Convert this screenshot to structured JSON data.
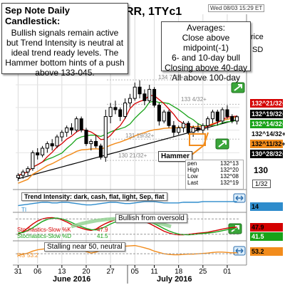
{
  "header": {
    "symbol_text": "RR, 1TYc1",
    "timestamp": "Wed 08/03 15:29 ET"
  },
  "notes": {
    "title": "Sep Note Daily Candlestick:",
    "body": "Bullish signals remain active but  Trend Intensity is neutral at ideal trend ready levels. The Hammer bottom hints of a push above 133-045."
  },
  "averages": {
    "title": "Averages:",
    "lines": [
      "Close above midpoint(-1)",
      "6- and 10-day bull",
      "Closing above 40-day",
      "All above 100-day"
    ]
  },
  "edge_fragments": [
    "rice",
    "SD"
  ],
  "hammer_label": "Hammer",
  "data_window": {
    "rows": [
      {
        "label": "pen",
        "value": "132^13"
      },
      {
        "label": "High",
        "value": "132^20"
      },
      {
        "label": "Low",
        "value": "132^08"
      },
      {
        "label": "Last",
        "value": "132^19"
      }
    ]
  },
  "level_labels": [
    "134 7/32+",
    "133 4/32+",
    "131 19/32+",
    "130 21/32+"
  ],
  "price_tags": [
    {
      "text": "132^21/32+",
      "bg": "#d40000",
      "fg": "#ffffff"
    },
    {
      "text": "132^19/32+",
      "bg": "#000000",
      "fg": "#ffffff"
    },
    {
      "text": "132^14/32+",
      "bg": "#19a319",
      "fg": "#ffffff"
    },
    {
      "text": "132^14/32+",
      "bg": "#ffffff",
      "fg": "#000000"
    },
    {
      "text": "132^11/32+",
      "bg": "#f28c1c",
      "fg": "#000000"
    },
    {
      "text": "130^28/32+",
      "bg": "#000000",
      "fg": "#ffffff"
    }
  ],
  "axis_labels": {
    "main_y": "130",
    "sub_y": "1/32"
  },
  "panels": {
    "trend": {
      "label": "Trend Intensity: dark, cash, flat, light, Sep, flat",
      "value": "14",
      "tag_bg": "#2e8ccc",
      "small": "TI"
    },
    "stochastics": {
      "label": "Bullish from oversold",
      "k_label": "Stochastics-Slow %K",
      "k_value": "47.9",
      "d_label": "Stochastics-Slow %D",
      "d_value": "41.5",
      "k_tag": "47.9",
      "k_tag_bg": "#d40000",
      "d_tag": "41.5",
      "d_tag_bg": "#19a319"
    },
    "rsi": {
      "label": "Stalling near 50, neutral",
      "small": "RS",
      "value_text": "53.2",
      "tag": "53.2",
      "tag_bg": "#f28c1c"
    }
  },
  "x_axis": {
    "ticks": [
      "31",
      "06",
      "13",
      "20",
      "27",
      "05",
      "11",
      "18",
      "25",
      "01"
    ],
    "months": [
      "June 2016",
      "July 2016"
    ]
  },
  "chart_data": [
    {
      "type": "candlestick",
      "title": "Sep Note Daily Candlestick",
      "x": [
        "05-31",
        "06-01",
        "06-02",
        "06-03",
        "06-06",
        "06-07",
        "06-08",
        "06-09",
        "06-10",
        "06-13",
        "06-14",
        "06-15",
        "06-16",
        "06-17",
        "06-20",
        "06-21",
        "06-22",
        "06-23",
        "06-24",
        "06-27",
        "06-28",
        "06-29",
        "06-30",
        "07-01",
        "07-05",
        "07-06",
        "07-07",
        "07-08",
        "07-11",
        "07-12",
        "07-13",
        "07-14",
        "07-15",
        "07-18",
        "07-19",
        "07-20",
        "07-21",
        "07-22",
        "07-25",
        "07-26",
        "07-27",
        "07-28",
        "07-29",
        "08-01",
        "08-02",
        "08-03"
      ],
      "candles": [
        [
          129.9,
          130.1,
          129.75,
          130.0
        ],
        [
          130.0,
          130.25,
          129.85,
          130.15
        ],
        [
          130.15,
          130.4,
          130.0,
          130.3
        ],
        [
          130.3,
          131.1,
          130.2,
          131.0
        ],
        [
          131.0,
          131.2,
          130.7,
          130.9
        ],
        [
          130.9,
          131.3,
          130.8,
          131.2
        ],
        [
          131.2,
          131.5,
          131.0,
          131.4
        ],
        [
          131.4,
          131.6,
          131.1,
          131.3
        ],
        [
          131.3,
          131.8,
          131.2,
          131.7
        ],
        [
          131.7,
          132.0,
          131.5,
          131.9
        ],
        [
          131.9,
          132.2,
          131.7,
          132.1
        ],
        [
          132.1,
          132.3,
          131.8,
          132.0
        ],
        [
          132.0,
          132.6,
          131.9,
          132.5
        ],
        [
          132.5,
          132.6,
          131.9,
          132.0
        ],
        [
          132.0,
          132.1,
          131.3,
          131.4
        ],
        [
          131.4,
          131.6,
          131.1,
          131.5
        ],
        [
          131.5,
          131.8,
          131.2,
          131.3
        ],
        [
          131.3,
          131.4,
          130.7,
          130.8
        ],
        [
          130.8,
          132.9,
          130.6,
          132.6
        ],
        [
          132.6,
          133.2,
          132.3,
          133.0
        ],
        [
          133.0,
          133.3,
          132.7,
          132.9
        ],
        [
          132.9,
          133.0,
          132.4,
          132.6
        ],
        [
          132.6,
          133.4,
          132.5,
          133.2
        ],
        [
          133.2,
          133.6,
          133.0,
          133.4
        ],
        [
          133.4,
          134.1,
          133.3,
          133.9
        ],
        [
          133.9,
          134.2,
          133.4,
          133.6
        ],
        [
          133.6,
          133.8,
          133.1,
          133.3
        ],
        [
          133.3,
          134.0,
          133.2,
          133.8
        ],
        [
          133.8,
          133.9,
          133.0,
          133.1
        ],
        [
          133.1,
          133.2,
          132.2,
          132.4
        ],
        [
          132.4,
          132.9,
          132.3,
          132.8
        ],
        [
          132.8,
          132.9,
          132.1,
          132.2
        ],
        [
          132.2,
          132.4,
          131.7,
          131.9
        ],
        [
          131.9,
          132.2,
          131.8,
          132.1
        ],
        [
          132.1,
          132.4,
          131.9,
          132.3
        ],
        [
          132.3,
          132.4,
          131.8,
          131.9
        ],
        [
          131.9,
          132.2,
          131.7,
          132.1
        ],
        [
          132.1,
          132.3,
          131.9,
          132.0
        ],
        [
          132.0,
          132.3,
          131.8,
          132.2
        ],
        [
          132.2,
          132.6,
          132.0,
          132.5
        ],
        [
          132.5,
          132.9,
          132.3,
          132.8
        ],
        [
          132.8,
          132.9,
          132.2,
          132.4
        ],
        [
          132.4,
          133.0,
          132.3,
          132.9
        ],
        [
          132.9,
          133.1,
          132.5,
          132.6
        ],
        [
          132.6,
          132.7,
          132.3,
          132.4
        ],
        [
          132.4,
          132.65,
          132.25,
          132.59
        ]
      ],
      "ylim": [
        129.5,
        134.6
      ]
    },
    {
      "type": "line",
      "title": "Trend Intensity",
      "series": [
        {
          "values": [
            8,
            9,
            10,
            11,
            12,
            13,
            13,
            12,
            12,
            13,
            13,
            12,
            11,
            10,
            9,
            9,
            10,
            11,
            12,
            13,
            13,
            12,
            11,
            11,
            12,
            13,
            14,
            14,
            14,
            13,
            12,
            12,
            12,
            12,
            13,
            13,
            13,
            13,
            14,
            14,
            14,
            14,
            14,
            14,
            14,
            14
          ]
        }
      ],
      "ylim": [
        0,
        30
      ]
    },
    {
      "type": "line",
      "title": "Stochastics-Slow",
      "series": [
        {
          "name": "Stochastics-Slow %K",
          "values": [
            20,
            30,
            45,
            60,
            72,
            80,
            84,
            85,
            82,
            76,
            68,
            58,
            50,
            44,
            38,
            35,
            40,
            52,
            62,
            70,
            76,
            79,
            81,
            82,
            80,
            76,
            70,
            62,
            52,
            42,
            32,
            25,
            20,
            18,
            18,
            20,
            22,
            24,
            26,
            28,
            32,
            36,
            40,
            44,
            46,
            47.9
          ]
        },
        {
          "name": "Stochastics-Slow %D",
          "values": [
            25,
            27,
            35,
            45,
            58,
            70,
            78,
            82,
            83,
            80,
            74,
            66,
            57,
            50,
            43,
            38,
            37,
            42,
            50,
            60,
            68,
            75,
            78,
            80,
            81,
            79,
            75,
            69,
            61,
            52,
            42,
            33,
            26,
            21,
            19,
            18,
            19,
            21,
            23,
            25,
            27,
            30,
            34,
            38,
            40,
            41.5
          ]
        }
      ],
      "ylim": [
        0,
        100
      ]
    },
    {
      "type": "line",
      "title": "RSI",
      "series": [
        {
          "values": [
            45,
            48,
            52,
            58,
            62,
            64,
            66,
            68,
            70,
            72,
            73,
            70,
            67,
            62,
            57,
            52,
            55,
            60,
            64,
            68,
            70,
            72,
            73,
            74,
            75,
            72,
            68,
            64,
            58,
            54,
            50,
            48,
            47,
            47,
            48,
            49,
            49,
            50,
            51,
            52,
            54,
            55,
            55,
            54,
            53,
            53.2
          ]
        }
      ],
      "ylim": [
        20,
        85
      ]
    }
  ]
}
